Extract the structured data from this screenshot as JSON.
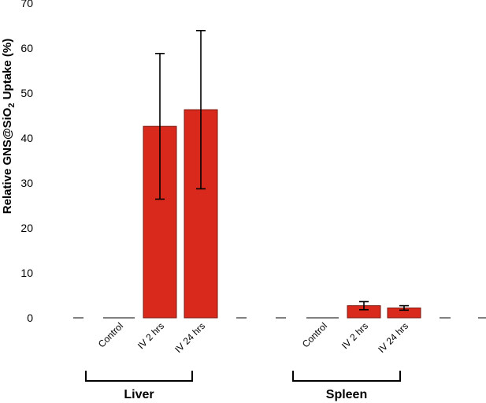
{
  "chart_data": {
    "type": "bar",
    "ylabel_prefix": "Relative GNS@SiO",
    "ylabel_subscript": "2",
    "ylabel_suffix": " Uptake (%)",
    "ylim": [
      0,
      70
    ],
    "yticks": [
      "0",
      "10",
      "20",
      "30",
      "40",
      "50",
      "60",
      "70"
    ],
    "grid": false,
    "bar_color": "#d9291c",
    "groups": [
      {
        "name": "Liver",
        "categories": [
          "Control",
          "IV 2 hrs",
          "IV 24 hrs"
        ],
        "values": [
          0,
          42.6,
          46.3
        ],
        "errors": [
          0,
          16.2,
          17.6
        ]
      },
      {
        "name": "Spleen",
        "categories": [
          "Control",
          "IV 2 hrs",
          "IV 24 hrs"
        ],
        "values": [
          0,
          2.7,
          2.2
        ],
        "errors": [
          0,
          0.9,
          0.5
        ]
      }
    ]
  }
}
